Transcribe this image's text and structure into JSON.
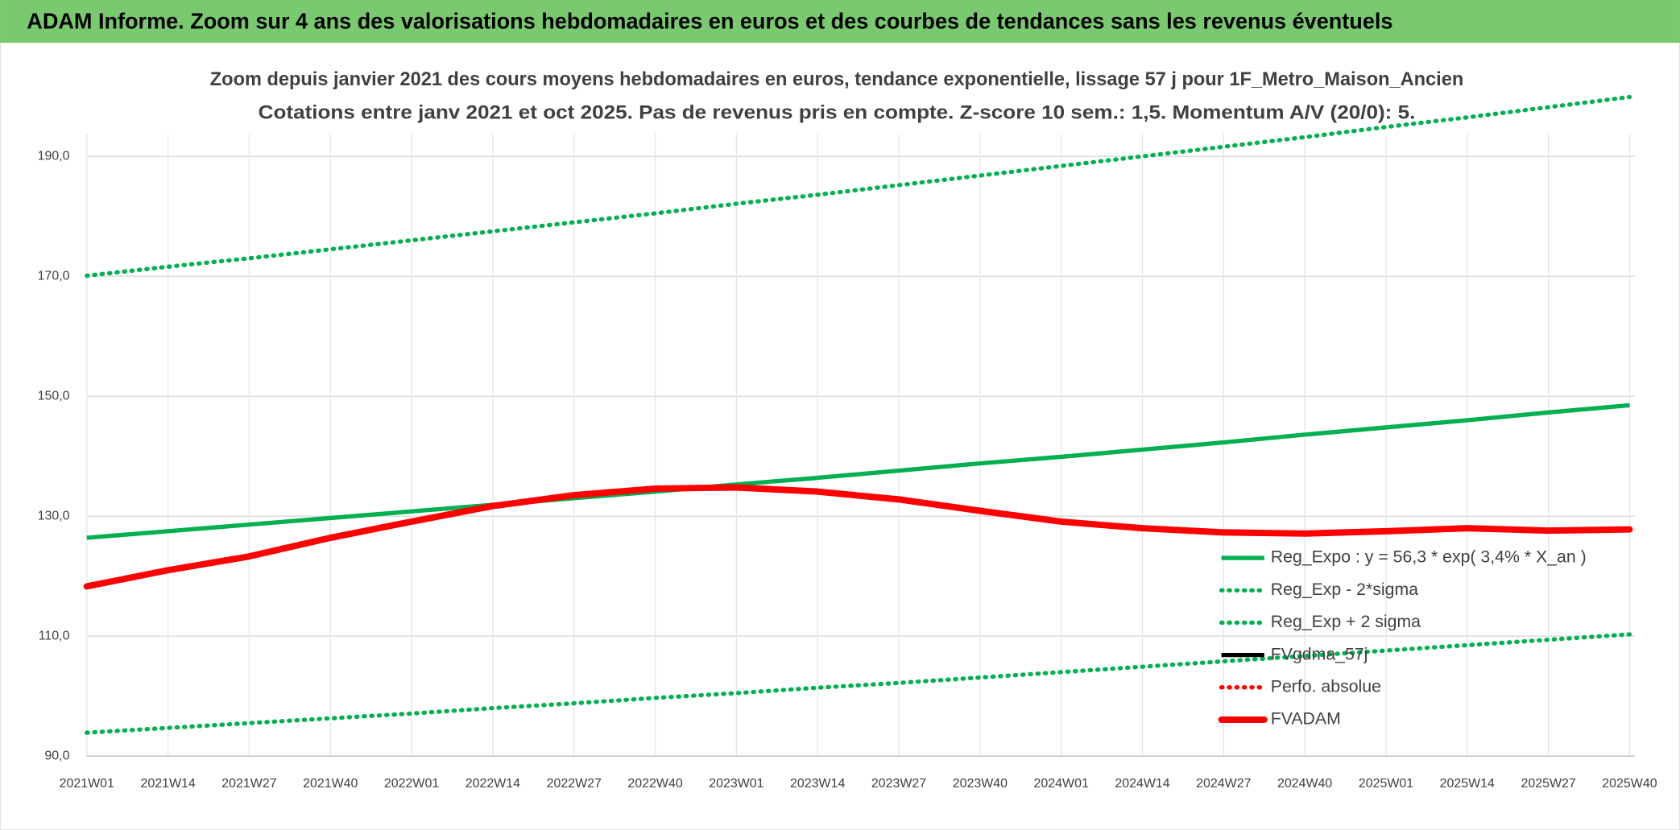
{
  "header": {
    "title": "ADAM Informe. Zoom sur 4 ans des valorisations hebdomadaires en euros et des courbes de tendances sans les revenus éventuels"
  },
  "chart_data": {
    "type": "line",
    "title": [
      "Zoom depuis janvier 2021 des cours moyens hebdomadaires en euros, tendance exponentielle, lissage 57 j pour 1F_Metro_Maison_Ancien",
      "Cotations entre janv 2021 et oct 2025. Pas de revenus pris en compte. Z-score 10 sem.: 1,5. Momentum A/V (20/0): 5."
    ],
    "categories": [
      "2021W01",
      "2021W14",
      "2021W27",
      "2021W40",
      "2022W01",
      "2022W14",
      "2022W27",
      "2022W40",
      "2023W01",
      "2023W14",
      "2023W27",
      "2023W40",
      "2024W01",
      "2024W14",
      "2024W27",
      "2024W40",
      "2025W01",
      "2025W14",
      "2025W27",
      "2025W40"
    ],
    "ylim": [
      90,
      200
    ],
    "yticks": [
      {
        "value": 90,
        "label": "90,0"
      },
      {
        "value": 110,
        "label": "110,0"
      },
      {
        "value": 130,
        "label": "130,0"
      },
      {
        "value": 150,
        "label": "150,0"
      },
      {
        "value": 170,
        "label": "170,0"
      },
      {
        "value": 190,
        "label": "190,0"
      }
    ],
    "grid": true,
    "series": [
      {
        "name": "Reg_Expo : y = 56,3 * exp( 3,4% *  X_an )",
        "color": "#00b050",
        "style": "solid",
        "values": [
          126.4,
          127.5,
          128.6,
          129.7,
          130.8,
          131.9,
          133.0,
          134.1,
          135.3,
          136.4,
          137.6,
          138.8,
          139.9,
          141.1,
          142.3,
          143.6,
          144.8,
          146.0,
          147.3,
          148.5
        ]
      },
      {
        "name": "Reg_Exp - 2*sigma",
        "color": "#00b050",
        "style": "dotted",
        "values": [
          93.9,
          94.7,
          95.5,
          96.3,
          97.1,
          98.0,
          98.8,
          99.7,
          100.5,
          101.4,
          102.2,
          103.1,
          104.0,
          104.9,
          105.8,
          106.7,
          107.6,
          108.5,
          109.4,
          110.3
        ]
      },
      {
        "name": "Reg_Exp + 2 sigma",
        "color": "#00b050",
        "style": "dotted",
        "values": [
          170.1,
          171.6,
          173.0,
          174.5,
          176.0,
          177.5,
          179.0,
          180.5,
          182.1,
          183.6,
          185.2,
          186.8,
          188.4,
          190.0,
          191.6,
          193.2,
          194.9,
          196.5,
          198.2,
          199.9
        ]
      },
      {
        "name": "FVgdma_57j",
        "color": "#000000",
        "style": "solid",
        "values": [
          118.3,
          121.0,
          123.3,
          126.4,
          129.1,
          131.7,
          133.5,
          134.6,
          134.8,
          134.1,
          132.8,
          130.9,
          129.1,
          128.0,
          127.3,
          127.1,
          127.5,
          128.0,
          127.6,
          127.8
        ]
      },
      {
        "name": "Perfo. absolue",
        "color": "#ff0000",
        "style": "dotted",
        "values": [
          null,
          null,
          null,
          null,
          null,
          null,
          null,
          null,
          null,
          null,
          null,
          null,
          null,
          null,
          null,
          null,
          null,
          null,
          null,
          null
        ]
      },
      {
        "name": "FVADAM",
        "color": "#ff0000",
        "style": "thick",
        "values": [
          118.3,
          121.0,
          123.3,
          126.4,
          129.1,
          131.7,
          133.5,
          134.6,
          134.8,
          134.1,
          132.8,
          130.9,
          129.1,
          128.0,
          127.3,
          127.1,
          127.5,
          128.0,
          127.6,
          127.8
        ]
      }
    ]
  }
}
